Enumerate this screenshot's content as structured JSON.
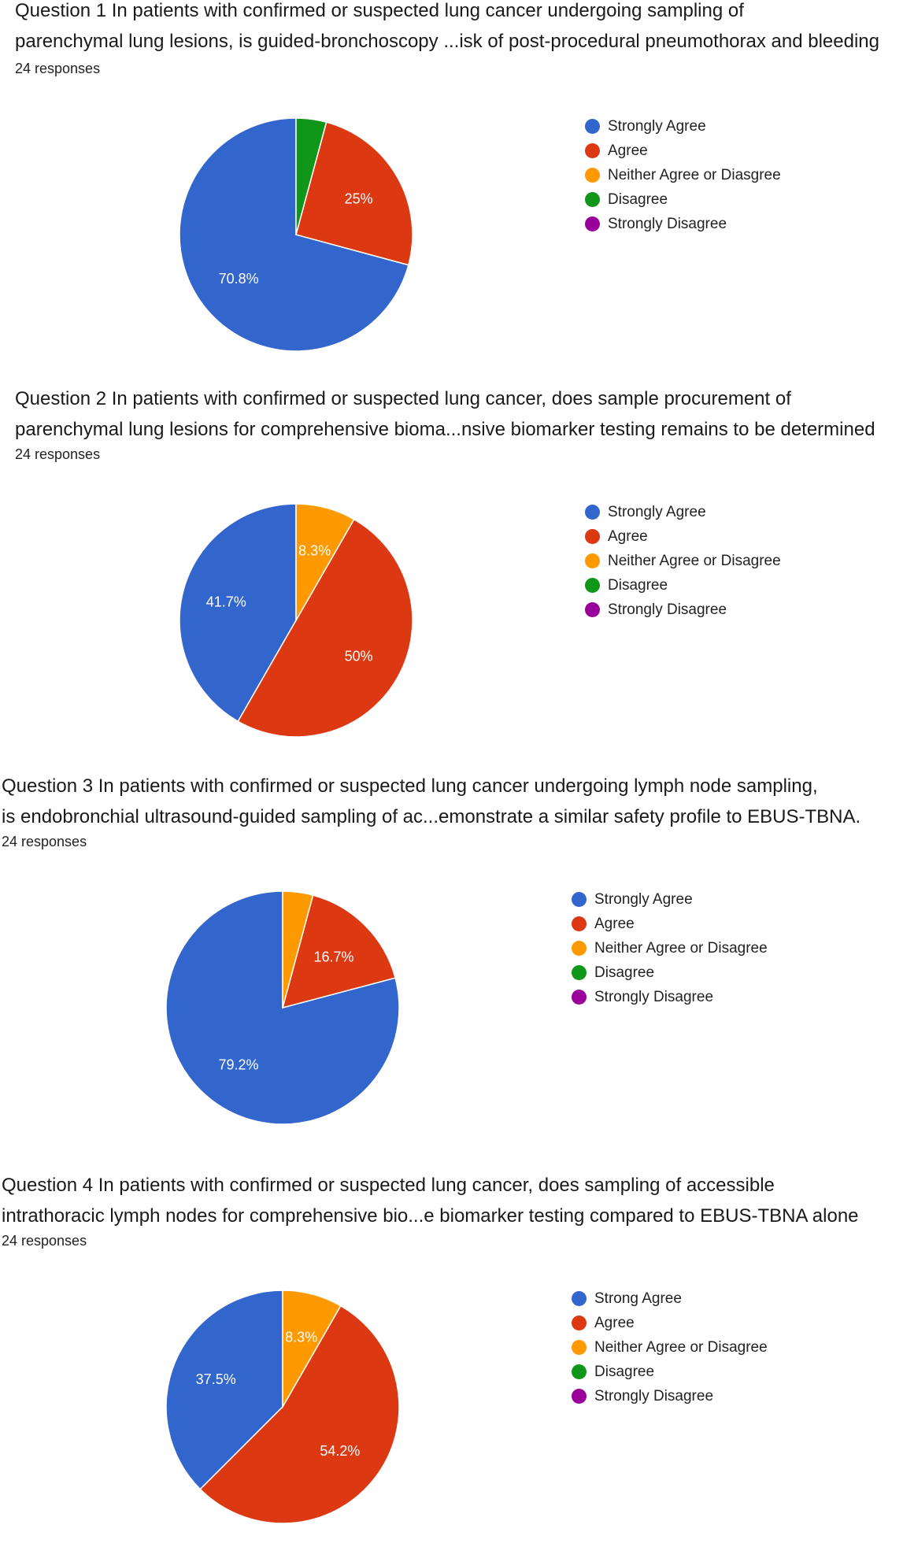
{
  "questions": [
    {
      "title_line1": "Question 1  In patients with confirmed or suspected lung cancer undergoing sampling of",
      "title_line2": "parenchymal lung lesions, is guided-bronchoscopy ...isk of post-procedural pneumothorax and bleeding",
      "responses": "24 responses"
    },
    {
      "title_line1": "Question 2  In patients with confirmed or suspected lung cancer, does sample procurement of",
      "title_line2": "parenchymal lung lesions for comprehensive bioma...nsive biomarker testing remains to be determined",
      "responses": "24 responses"
    },
    {
      "title_line1": "Question 3  In patients with confirmed or suspected lung cancer undergoing lymph node sampling,",
      "title_line2": "is endobronchial ultrasound-guided sampling of ac...emonstrate a similar safety profile to EBUS-TBNA.",
      "responses": "24 responses"
    },
    {
      "title_line1": "Question 4   In patients with confirmed or suspected lung cancer, does sampling of accessible",
      "title_line2": "intrathoracic lymph nodes for comprehensive bio...e biomarker testing compared to EBUS-TBNA alone",
      "responses": "24 responses"
    }
  ],
  "colors": {
    "strongly_agree": "#3366cc",
    "agree": "#dc3912",
    "neither": "#ff9900",
    "disagree": "#109618",
    "strongly_disagree": "#990099"
  },
  "chart_data": [
    {
      "type": "pie",
      "title": "",
      "start_angle_deg": 90,
      "direction": "counterclockwise",
      "slices": [
        {
          "label": "Strongly Agree",
          "value": 70.8,
          "data_label": "70.8%",
          "color": "#3366cc"
        },
        {
          "label": "Agree",
          "value": 25,
          "data_label": "25%",
          "color": "#dc3912"
        },
        {
          "label": "Neither Agree or Diasgree",
          "value": 0,
          "data_label": "",
          "color": "#ff9900"
        },
        {
          "label": "Disagree",
          "value": 4.2,
          "data_label": "",
          "color": "#109618"
        },
        {
          "label": "Strongly Disagree",
          "value": 0,
          "data_label": "",
          "color": "#990099"
        }
      ],
      "legend_position": "right"
    },
    {
      "type": "pie",
      "title": "",
      "start_angle_deg": 90,
      "direction": "counterclockwise",
      "slices": [
        {
          "label": "Strongly Agree",
          "value": 41.7,
          "data_label": "41.7%",
          "color": "#3366cc"
        },
        {
          "label": "Agree",
          "value": 50,
          "data_label": "50%",
          "color": "#dc3912"
        },
        {
          "label": "Neither Agree or Disagree",
          "value": 8.3,
          "data_label": "8.3%",
          "color": "#ff9900"
        },
        {
          "label": "Disagree",
          "value": 0,
          "data_label": "",
          "color": "#109618"
        },
        {
          "label": "Strongly Disagree",
          "value": 0,
          "data_label": "",
          "color": "#990099"
        }
      ],
      "legend_position": "right"
    },
    {
      "type": "pie",
      "title": "",
      "start_angle_deg": 90,
      "direction": "counterclockwise",
      "slices": [
        {
          "label": "Strongly Agree",
          "value": 79.2,
          "data_label": "79.2%",
          "color": "#3366cc"
        },
        {
          "label": "Agree",
          "value": 16.7,
          "data_label": "16.7%",
          "color": "#dc3912"
        },
        {
          "label": "Neither Agree or Disagree",
          "value": 4.2,
          "data_label": "",
          "color": "#ff9900"
        },
        {
          "label": "Disagree",
          "value": 0,
          "data_label": "",
          "color": "#109618"
        },
        {
          "label": "Strongly Disagree",
          "value": 0,
          "data_label": "",
          "color": "#990099"
        }
      ],
      "legend_position": "right"
    },
    {
      "type": "pie",
      "title": "",
      "start_angle_deg": 90,
      "direction": "counterclockwise",
      "slices": [
        {
          "label": "Strong Agree",
          "value": 37.5,
          "data_label": "37.5%",
          "color": "#3366cc"
        },
        {
          "label": "Agree",
          "value": 54.2,
          "data_label": "54.2%",
          "color": "#dc3912"
        },
        {
          "label": "Neither Agree or Disagree",
          "value": 8.3,
          "data_label": "8.3%",
          "color": "#ff9900"
        },
        {
          "label": "Disagree",
          "value": 0,
          "data_label": "",
          "color": "#109618"
        },
        {
          "label": "Strongly Disagree",
          "value": 0,
          "data_label": "",
          "color": "#990099"
        }
      ],
      "legend_position": "right"
    }
  ]
}
